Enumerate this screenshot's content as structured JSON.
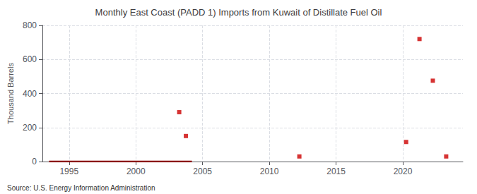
{
  "chart_data": {
    "type": "scatter",
    "title": "Monthly East Coast (PADD 1) Imports from Kuwait of Distillate Fuel Oil",
    "ylabel": "Thousand Barrels",
    "annotations": [
      "Source: U.S. Energy Information Administration"
    ],
    "series": [
      {
        "type": "line",
        "color": "#8b0000",
        "line_style": "solid",
        "x": [
          1993.5,
          2004.2
        ],
        "values": [
          0,
          0
        ]
      },
      {
        "type": "scatter",
        "color": "#cc0000",
        "marker": "square",
        "x": [
          2003.25,
          2003.75,
          2012.25,
          2020.25,
          2021.25,
          2022.25,
          2023.25
        ],
        "values": [
          290,
          150,
          30,
          115,
          720,
          475,
          30
        ]
      }
    ],
    "xlim": [
      1993.0,
      2024.5
    ],
    "xticks": [
      1995,
      2000,
      2005,
      2010,
      2015,
      2020
    ],
    "ylim": [
      0,
      800
    ],
    "yticks": [
      0,
      200,
      400,
      600,
      800
    ],
    "grid": true
  }
}
